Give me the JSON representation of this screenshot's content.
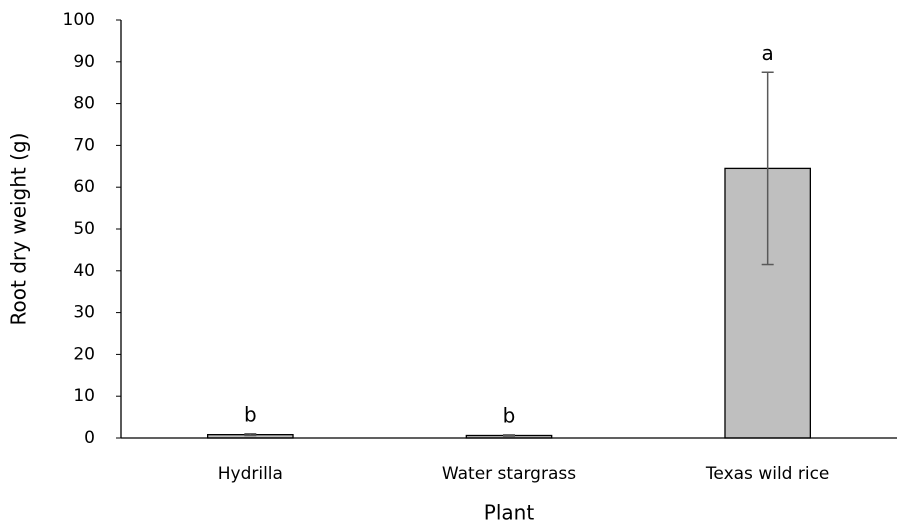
{
  "chart_data": {
    "type": "bar",
    "x_label": "Plant",
    "y_label": "Root dry weight (g)",
    "categories": [
      "Hydrilla",
      "Water stargrass",
      "Texas wild rice"
    ],
    "values": [
      0.8,
      0.6,
      64.5
    ],
    "errors": [
      0.2,
      0.15,
      23
    ],
    "annotations": [
      "b",
      "b",
      "a"
    ],
    "color": "#bfbfbf",
    "error_color": "#595959",
    "ylim": [
      0,
      100
    ],
    "yticks": [
      0,
      10,
      20,
      30,
      40,
      50,
      60,
      70,
      80,
      90,
      100
    ],
    "grid": false
  }
}
